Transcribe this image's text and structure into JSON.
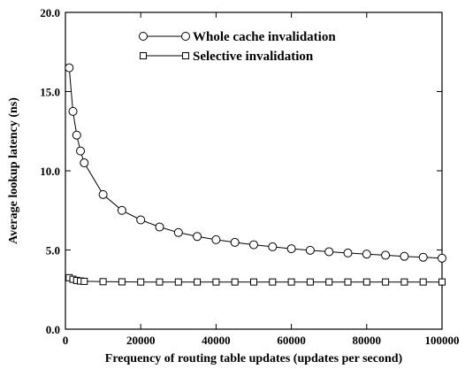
{
  "chart_data": {
    "type": "line",
    "title": "",
    "xlabel": "Frequency of routing table updates (updates per second)",
    "ylabel": "Average lookup latency (ns)",
    "xlim": [
      0,
      100000
    ],
    "ylim": [
      0.0,
      20.0
    ],
    "x_ticks": [
      0,
      20000,
      40000,
      60000,
      80000,
      100000
    ],
    "x_tick_labels": [
      "0",
      "20000",
      "40000",
      "60000",
      "80000",
      "100000"
    ],
    "y_ticks": [
      0.0,
      5.0,
      10.0,
      15.0,
      20.0
    ],
    "y_tick_labels": [
      "0.0",
      "5.0",
      "10.0",
      "15.0",
      "20.0"
    ],
    "grid": false,
    "legend_position": "top-center",
    "colors": {
      "line": "#000000",
      "marker_fill": "#ffffff"
    },
    "series": [
      {
        "name": "Whole cache invalidation",
        "marker": "circle",
        "x": [
          1000,
          2000,
          3000,
          4000,
          5000,
          10000,
          15000,
          20000,
          25000,
          30000,
          35000,
          40000,
          45000,
          50000,
          55000,
          60000,
          65000,
          70000,
          75000,
          80000,
          85000,
          90000,
          95000,
          100000
        ],
        "y": [
          16.5,
          13.75,
          12.25,
          11.25,
          10.5,
          8.5,
          7.5,
          6.9,
          6.45,
          6.1,
          5.85,
          5.65,
          5.48,
          5.33,
          5.2,
          5.08,
          4.98,
          4.89,
          4.81,
          4.74,
          4.67,
          4.6,
          4.54,
          4.48
        ]
      },
      {
        "name": "Selective invalidation",
        "marker": "square",
        "x": [
          1000,
          2000,
          3000,
          4000,
          5000,
          10000,
          15000,
          20000,
          25000,
          30000,
          35000,
          40000,
          45000,
          50000,
          55000,
          60000,
          65000,
          70000,
          75000,
          80000,
          85000,
          90000,
          95000,
          100000
        ],
        "y": [
          3.25,
          3.15,
          3.08,
          3.04,
          3.02,
          3.0,
          2.99,
          2.98,
          2.98,
          2.98,
          2.98,
          2.98,
          2.98,
          2.98,
          2.98,
          2.98,
          2.98,
          2.98,
          2.98,
          2.98,
          2.98,
          2.98,
          2.98,
          2.98
        ]
      }
    ]
  }
}
